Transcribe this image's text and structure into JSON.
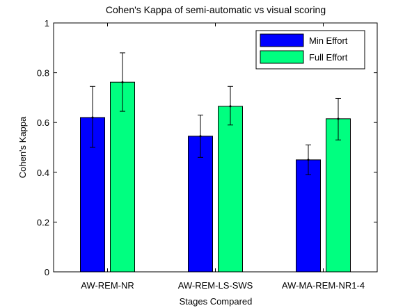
{
  "chart_data": {
    "type": "bar",
    "title": "Cohen's Kappa of semi-automatic vs visual scoring",
    "xlabel": "Stages Compared",
    "ylabel": "Cohen's Kappa",
    "ylim": [
      0,
      1
    ],
    "yticks": [
      "0",
      "0.2",
      "0.4",
      "0.6",
      "0.8",
      "1"
    ],
    "categories": [
      "AW-REM-NR",
      "AW-REM-LS-SWS",
      "AW-MA-REM-NR1-4"
    ],
    "series": [
      {
        "name": "Min Effort",
        "color": "#0000ff",
        "values": [
          0.62,
          0.545,
          0.45
        ],
        "error_low": [
          0.5,
          0.46,
          0.39
        ],
        "error_high": [
          0.745,
          0.63,
          0.51
        ]
      },
      {
        "name": "Full Effort",
        "color": "#00ff80",
        "values": [
          0.762,
          0.665,
          0.615
        ],
        "error_low": [
          0.645,
          0.59,
          0.53
        ],
        "error_high": [
          0.88,
          0.745,
          0.697
        ]
      }
    ],
    "legend_position": "top-right",
    "grid": false
  }
}
